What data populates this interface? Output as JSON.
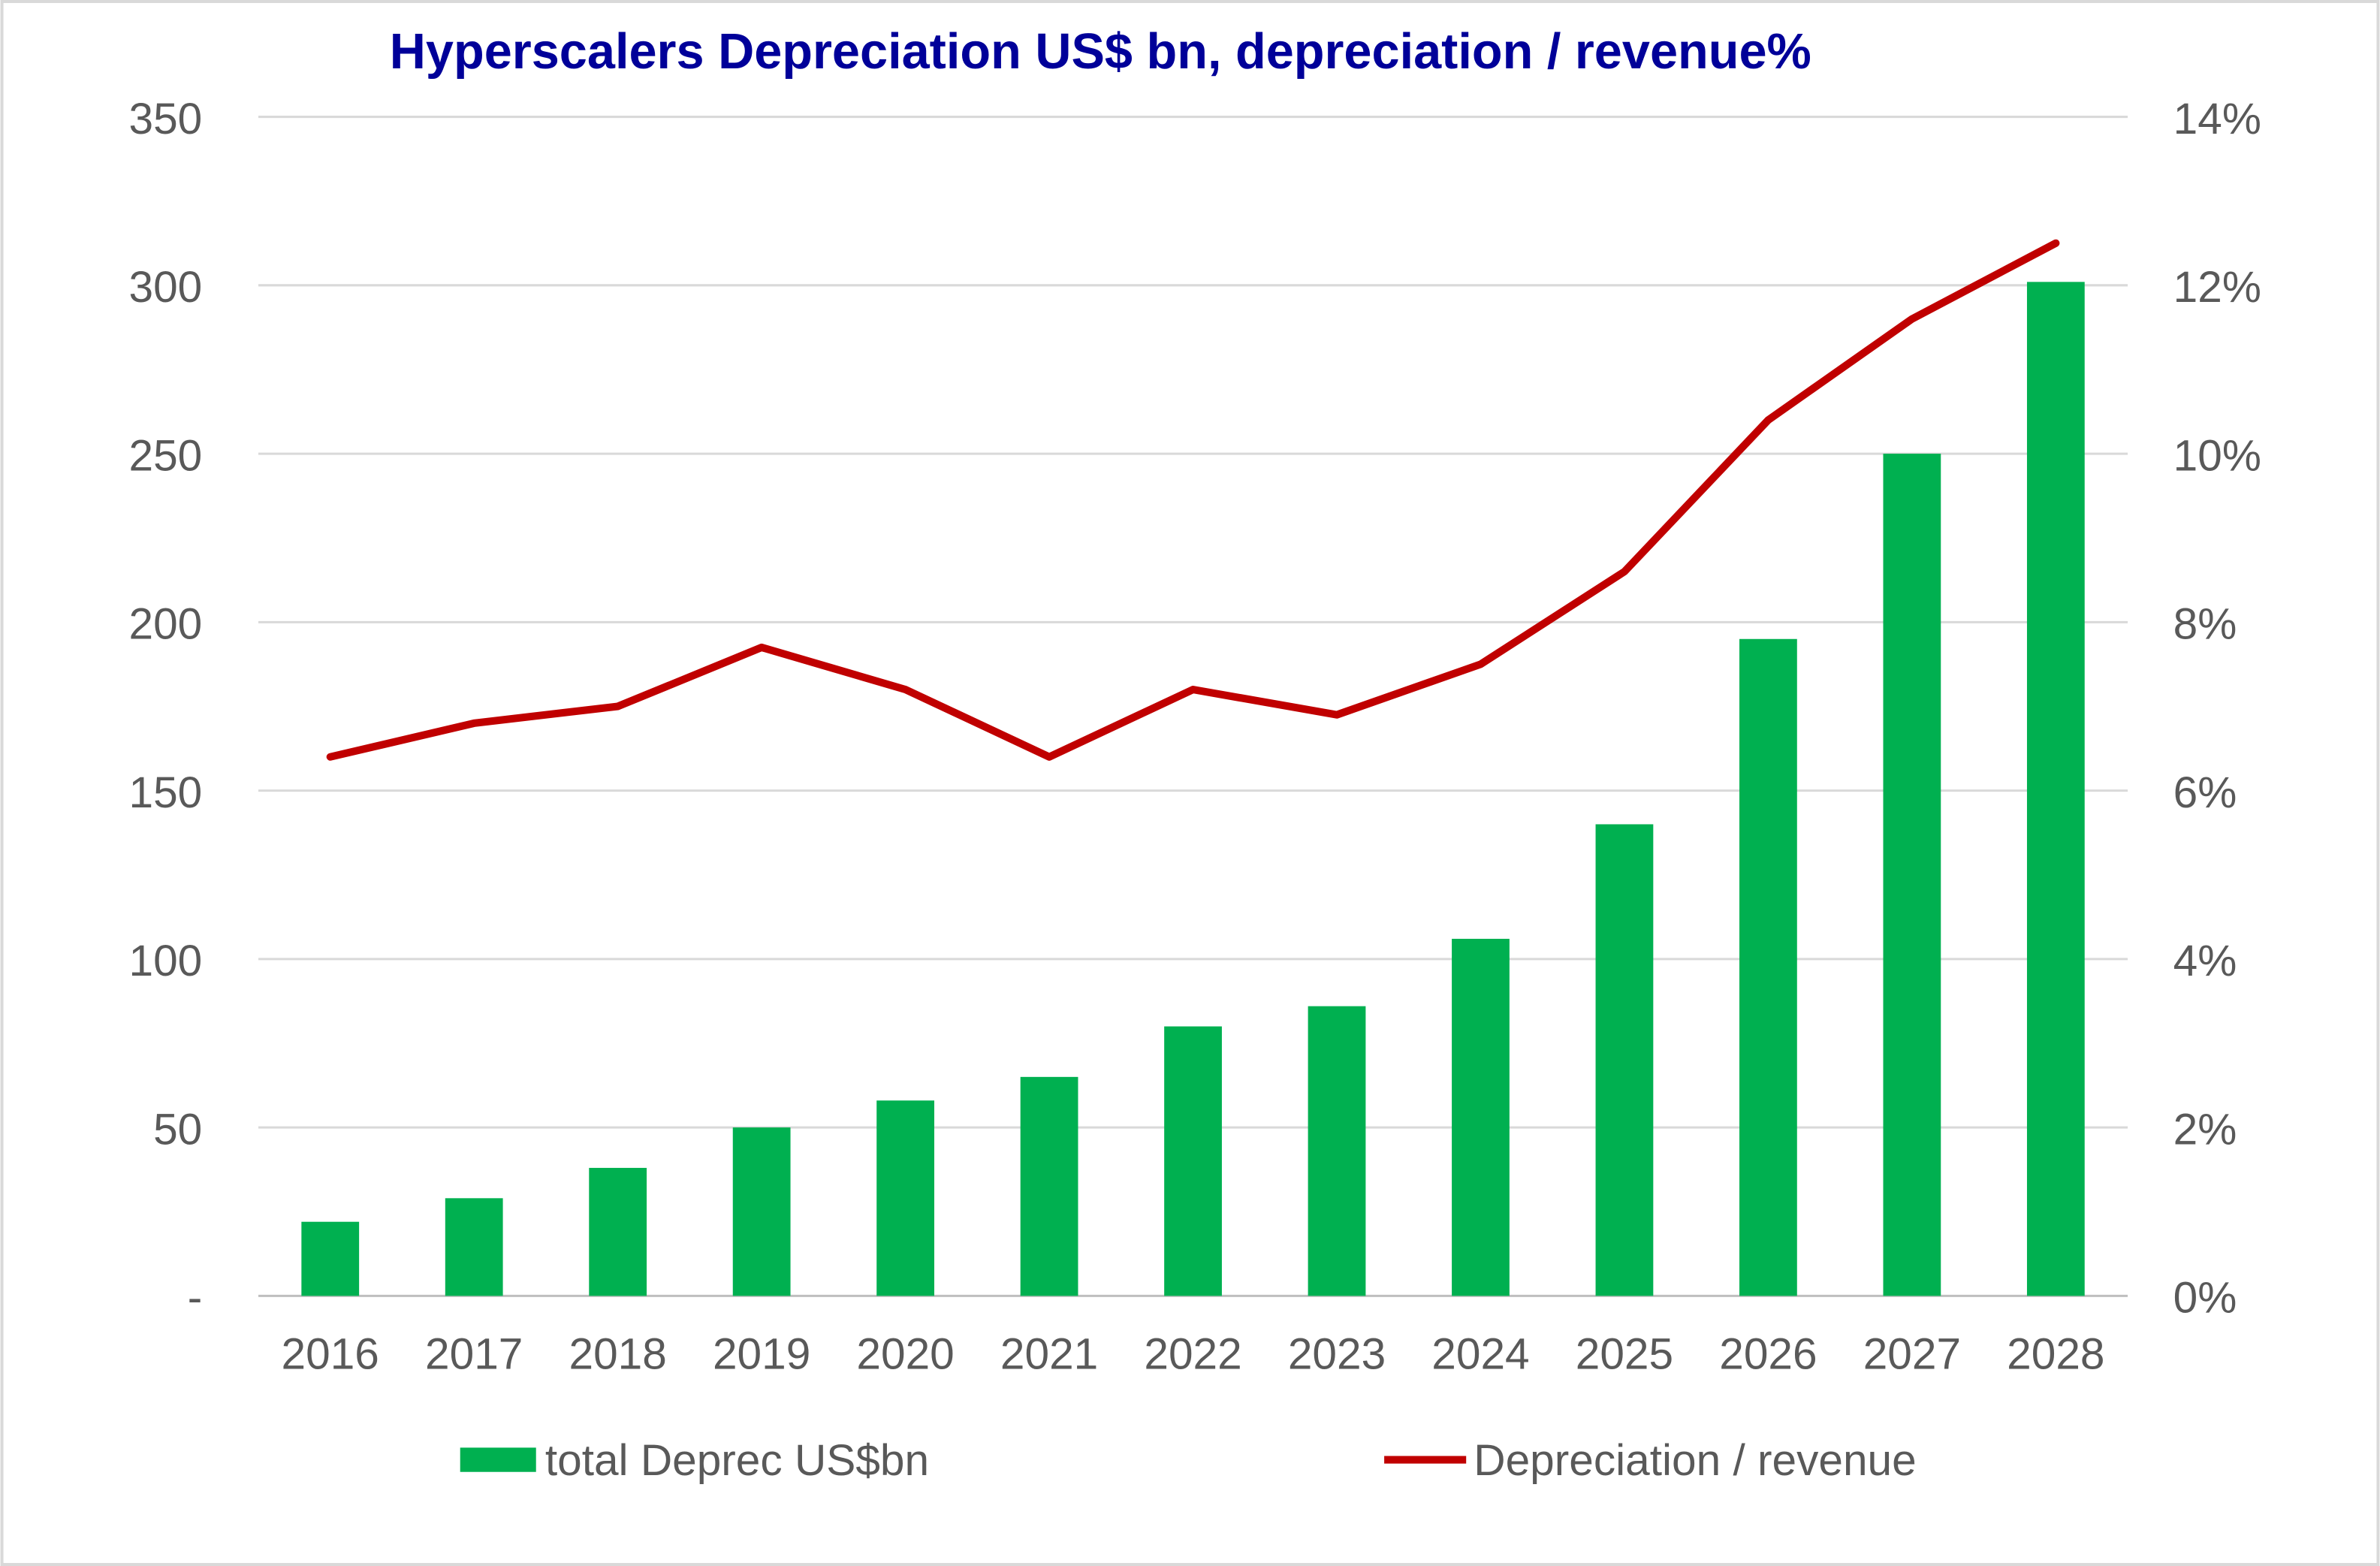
{
  "chart_data": {
    "type": "bar+line",
    "title": "Hyperscalers Depreciation US$ bn, depreciation / revenue%",
    "categories": [
      "2016",
      "2017",
      "2018",
      "2019",
      "2020",
      "2021",
      "2022",
      "2023",
      "2024",
      "2025",
      "2026",
      "2027",
      "2028"
    ],
    "series": [
      {
        "name": "total Deprec US$bn",
        "type": "bar",
        "axis": "left",
        "color": "#00B050",
        "values": [
          22,
          29,
          38,
          50,
          58,
          65,
          80,
          86,
          106,
          140,
          195,
          250,
          301
        ]
      },
      {
        "name": "Depreciation / revenue",
        "type": "line",
        "axis": "right",
        "color": "#C00000",
        "values": [
          6.4,
          6.8,
          7.0,
          7.7,
          7.2,
          6.4,
          7.2,
          6.9,
          7.5,
          8.6,
          10.4,
          11.6,
          12.5
        ]
      }
    ],
    "left_axis": {
      "ylim": [
        0,
        350
      ],
      "ticks": [
        0,
        50,
        100,
        150,
        200,
        250,
        300,
        350
      ],
      "tick_labels": [
        "-",
        "50",
        "100",
        "150",
        "200",
        "250",
        "300",
        "350"
      ]
    },
    "right_axis": {
      "ylim": [
        0,
        14
      ],
      "ticks": [
        0,
        2,
        4,
        6,
        8,
        10,
        12,
        14
      ],
      "tick_labels": [
        "0%",
        "2%",
        "4%",
        "6%",
        "8%",
        "10%",
        "12%",
        "14%"
      ]
    },
    "grid": true,
    "legend_position": "bottom",
    "title_color": "#000099"
  }
}
